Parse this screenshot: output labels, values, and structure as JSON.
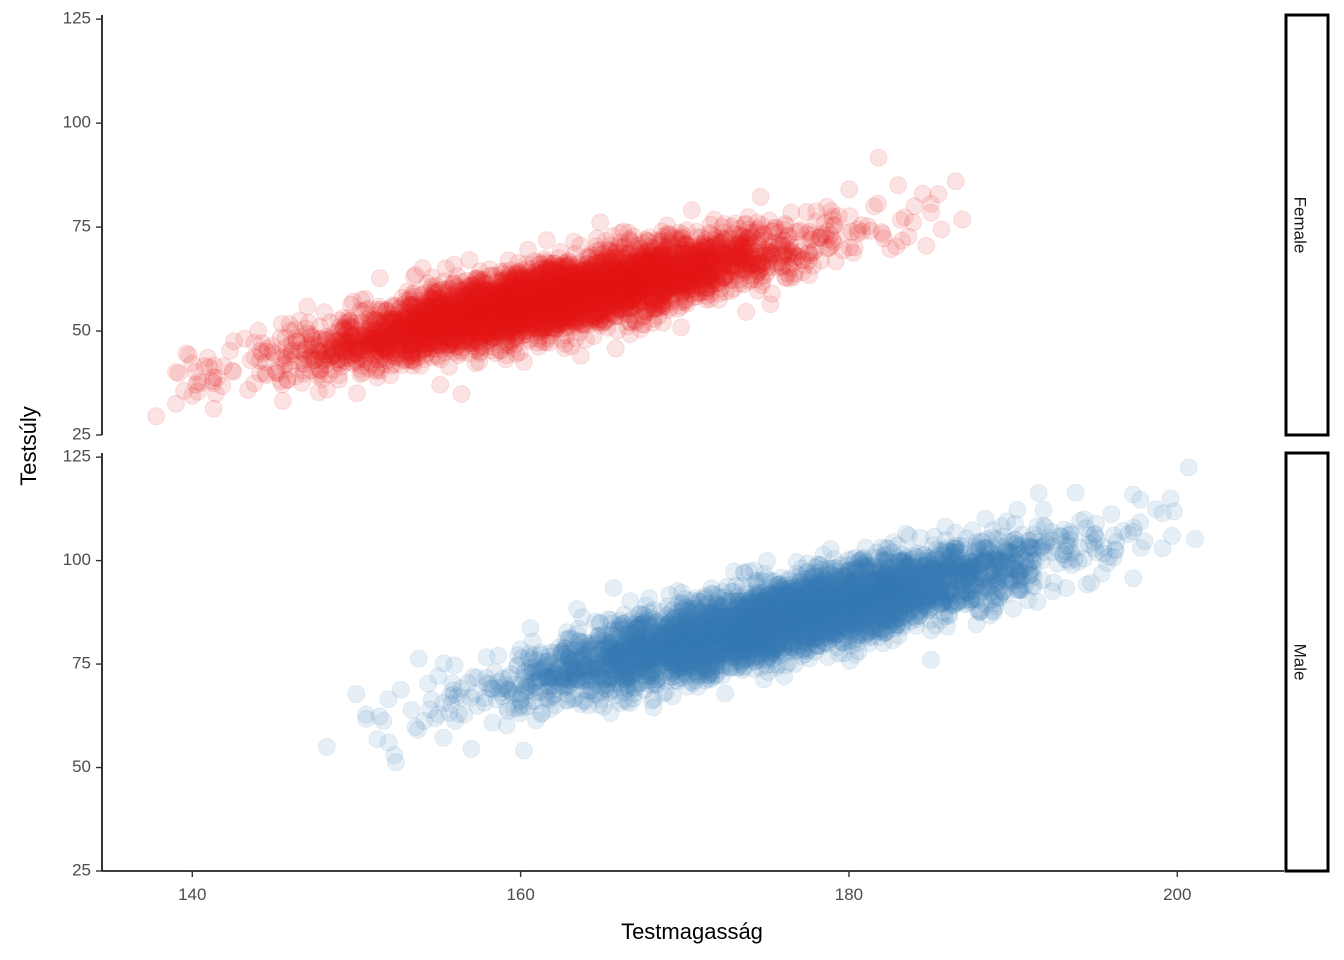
{
  "chart_data": {
    "type": "scatter",
    "facet": "rows",
    "xlabel": "Testmagasság",
    "ylabel": "Testsúly",
    "xlim": [
      134.5,
      206.5
    ],
    "ylim": [
      25,
      126
    ],
    "x_ticks": [
      140,
      160,
      180,
      200
    ],
    "x_tick_labels": [
      "140",
      "160",
      "180",
      "200"
    ],
    "y_ticks": [
      25,
      50,
      75,
      100,
      125
    ],
    "y_tick_labels": [
      "25",
      "50",
      "75",
      "100",
      "125"
    ],
    "grid": false,
    "point_alpha": 0.12,
    "panels": [
      {
        "strip_label": "Female",
        "color": "#E41A1C",
        "n_points": 5000,
        "cloud": {
          "x_mean": 162,
          "x_sd": 7,
          "slope": 0.85,
          "intercept": -79.7,
          "resid_sd": 4.0,
          "seed": 7
        },
        "points": [
          [
            137.8,
            29.5
          ],
          [
            139.0,
            32.5
          ],
          [
            139.5,
            35.6
          ],
          [
            140.2,
            40.2
          ],
          [
            141.3,
            31.3
          ],
          [
            141.5,
            38.8
          ],
          [
            142.5,
            40.2
          ],
          [
            143.4,
            35.8
          ],
          [
            145.5,
            33.2
          ],
          [
            147.7,
            35.3
          ],
          [
            155.1,
            37.1
          ],
          [
            165.8,
            45.8
          ],
          [
            160.2,
            42.6
          ],
          [
            181.8,
            91.7
          ],
          [
            183.0,
            85.1
          ],
          [
            184.0,
            80.0
          ],
          [
            185.0,
            80.6
          ],
          [
            186.5,
            86.0
          ],
          [
            184.5,
            83.0
          ],
          [
            180.8,
            73.9
          ]
        ]
      },
      {
        "strip_label": "Male",
        "color": "#377EB8",
        "n_points": 5000,
        "cloud": {
          "x_mean": 176,
          "x_sd": 7.5,
          "slope": 0.95,
          "intercept": -81.2,
          "resid_sd": 4.5,
          "seed": 11
        },
        "points": [
          [
            148.2,
            55.0
          ],
          [
            152.3,
            53.0
          ],
          [
            152.4,
            51.3
          ],
          [
            150.6,
            61.8
          ],
          [
            160.2,
            54.1
          ],
          [
            157.0,
            54.5
          ],
          [
            155.3,
            65.6
          ],
          [
            158.3,
            68.9
          ],
          [
            160.6,
            83.7
          ],
          [
            153.6,
            59.8
          ],
          [
            152.7,
            68.8
          ],
          [
            200.7,
            122.5
          ],
          [
            199.1,
            103.0
          ],
          [
            199.8,
            111.9
          ],
          [
            194.5,
            94.2
          ],
          [
            195.4,
            96.8
          ],
          [
            197.3,
            116.0
          ],
          [
            199.6,
            115.0
          ],
          [
            185.0,
            76.0
          ]
        ]
      }
    ]
  }
}
